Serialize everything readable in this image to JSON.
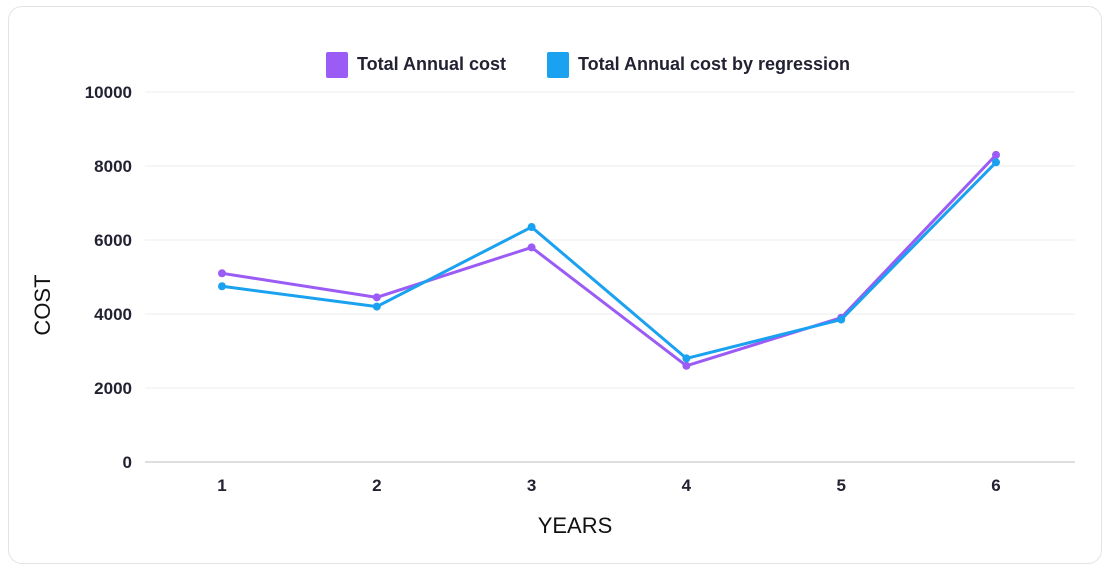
{
  "chart_data": {
    "type": "line",
    "title": "",
    "xlabel": "YEARS",
    "ylabel": "COST",
    "categories": [
      "1",
      "2",
      "3",
      "4",
      "5",
      "6"
    ],
    "ylim": [
      0,
      10000
    ],
    "yticks": [
      "0",
      "2000",
      "4000",
      "6000",
      "8000",
      "10000"
    ],
    "grid": true,
    "legend_position": "top-center",
    "series": [
      {
        "name": "Total Annual cost",
        "color": "#9b5cf6",
        "values": [
          5100,
          4450,
          5800,
          2600,
          3900,
          8300
        ]
      },
      {
        "name": "Total Annual cost by regression",
        "color": "#1aa1f0",
        "values": [
          4750,
          4200,
          6350,
          2800,
          3850,
          8100
        ]
      }
    ]
  }
}
